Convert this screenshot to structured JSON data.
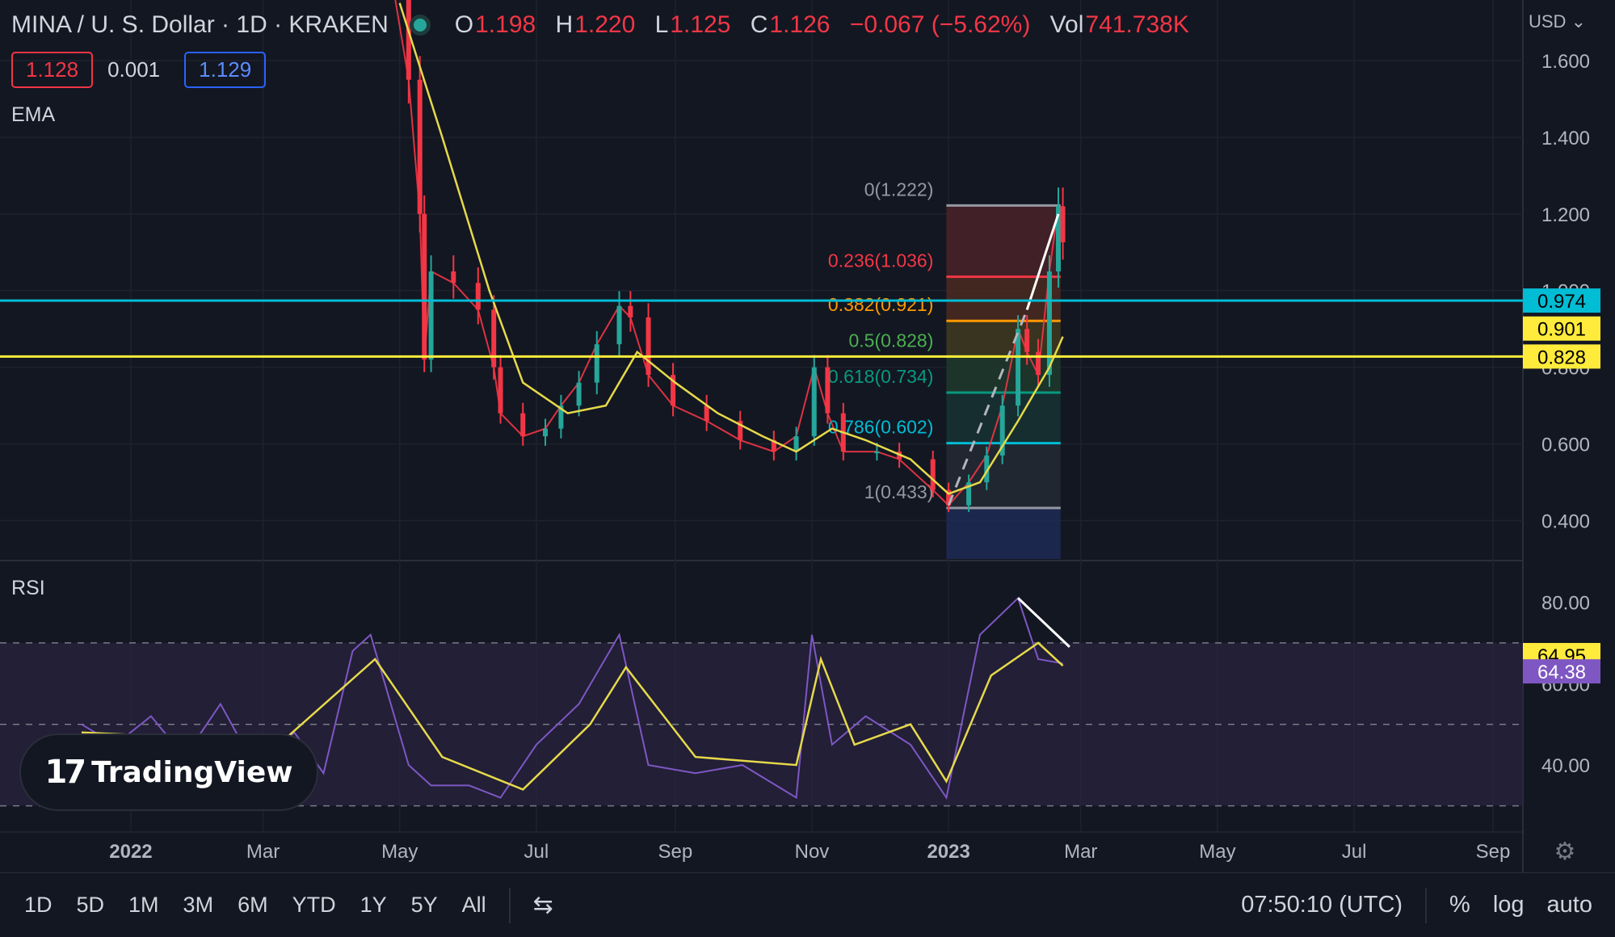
{
  "header": {
    "symbol": "MINA / U. S. Dollar · 1D · KRAKEN",
    "o_label": "O",
    "o": "1.198",
    "h_label": "H",
    "h": "1.220",
    "l_label": "L",
    "l": "1.125",
    "c_label": "C",
    "c": "1.126",
    "change": "−0.067 (−5.62%)",
    "vol_label": "Vol",
    "vol": "741.738K",
    "sell": "1.128",
    "spread": "0.001",
    "buy": "1.129",
    "currency": "USD"
  },
  "indicators": {
    "ema": "EMA",
    "rsi": "RSI"
  },
  "logo": {
    "text": "TradingView"
  },
  "toolbar": {
    "ranges": [
      "1D",
      "5D",
      "1M",
      "3M",
      "6M",
      "YTD",
      "1Y",
      "5Y",
      "All"
    ],
    "time": "07:50:10 (UTC)",
    "percent": "%",
    "log": "log",
    "auto": "auto"
  },
  "colors": {
    "bg": "#131722",
    "up": "#26a69a",
    "down": "#f23645",
    "ema": "#e6d94a",
    "rsi": "#7e57c2",
    "cyan": "#00bcd4",
    "yellow": "#ffeb3b"
  },
  "chart_data": {
    "type": "candlestick",
    "price_axis": {
      "ticks": [
        "1.600",
        "1.400",
        "1.200",
        "1.000",
        "0.800",
        "0.600",
        "0.400"
      ],
      "range": [
        0.3,
        1.72
      ]
    },
    "time_axis": {
      "labels": [
        "2022",
        "Mar",
        "May",
        "Jul",
        "Sep",
        "Nov",
        "2023",
        "Mar",
        "May",
        "Jul",
        "Sep"
      ],
      "bold": [
        "2022",
        "2023"
      ]
    },
    "price_series": [
      {
        "t": "2022-04-25",
        "v": 1.9
      },
      {
        "t": "2022-05-05",
        "v": 1.55
      },
      {
        "t": "2022-05-10",
        "v": 1.2
      },
      {
        "t": "2022-05-12",
        "v": 0.82
      },
      {
        "t": "2022-05-15",
        "v": 1.05
      },
      {
        "t": "2022-05-25",
        "v": 1.02
      },
      {
        "t": "2022-06-05",
        "v": 0.95
      },
      {
        "t": "2022-06-12",
        "v": 0.8
      },
      {
        "t": "2022-06-15",
        "v": 0.68
      },
      {
        "t": "2022-06-25",
        "v": 0.62
      },
      {
        "t": "2022-07-05",
        "v": 0.64
      },
      {
        "t": "2022-07-12",
        "v": 0.7
      },
      {
        "t": "2022-07-20",
        "v": 0.76
      },
      {
        "t": "2022-07-28",
        "v": 0.86
      },
      {
        "t": "2022-08-07",
        "v": 0.96
      },
      {
        "t": "2022-08-12",
        "v": 0.93
      },
      {
        "t": "2022-08-20",
        "v": 0.78
      },
      {
        "t": "2022-08-31",
        "v": 0.7
      },
      {
        "t": "2022-09-15",
        "v": 0.66
      },
      {
        "t": "2022-09-30",
        "v": 0.61
      },
      {
        "t": "2022-10-15",
        "v": 0.58
      },
      {
        "t": "2022-10-25",
        "v": 0.62
      },
      {
        "t": "2022-11-02",
        "v": 0.8
      },
      {
        "t": "2022-11-08",
        "v": 0.68
      },
      {
        "t": "2022-11-15",
        "v": 0.58
      },
      {
        "t": "2022-11-30",
        "v": 0.58
      },
      {
        "t": "2022-12-10",
        "v": 0.56
      },
      {
        "t": "2022-12-25",
        "v": 0.48
      },
      {
        "t": "2023-01-01",
        "v": 0.44
      },
      {
        "t": "2023-01-10",
        "v": 0.5
      },
      {
        "t": "2023-01-18",
        "v": 0.57
      },
      {
        "t": "2023-01-25",
        "v": 0.7
      },
      {
        "t": "2023-02-01",
        "v": 0.9
      },
      {
        "t": "2023-02-05",
        "v": 0.84
      },
      {
        "t": "2023-02-10",
        "v": 0.78
      },
      {
        "t": "2023-02-15",
        "v": 1.05
      },
      {
        "t": "2023-02-19",
        "v": 1.22
      },
      {
        "t": "2023-02-21",
        "v": 1.126
      }
    ],
    "ema_series": [
      {
        "t": "2022-05-01",
        "v": 1.75
      },
      {
        "t": "2022-05-20",
        "v": 1.4
      },
      {
        "t": "2022-06-10",
        "v": 1.0
      },
      {
        "t": "2022-06-25",
        "v": 0.76
      },
      {
        "t": "2022-07-15",
        "v": 0.68
      },
      {
        "t": "2022-08-01",
        "v": 0.7
      },
      {
        "t": "2022-08-15",
        "v": 0.84
      },
      {
        "t": "2022-09-01",
        "v": 0.76
      },
      {
        "t": "2022-09-20",
        "v": 0.68
      },
      {
        "t": "2022-10-10",
        "v": 0.62
      },
      {
        "t": "2022-10-25",
        "v": 0.58
      },
      {
        "t": "2022-11-10",
        "v": 0.64
      },
      {
        "t": "2022-11-25",
        "v": 0.61
      },
      {
        "t": "2022-12-15",
        "v": 0.56
      },
      {
        "t": "2023-01-01",
        "v": 0.47
      },
      {
        "t": "2023-01-15",
        "v": 0.5
      },
      {
        "t": "2023-02-01",
        "v": 0.66
      },
      {
        "t": "2023-02-15",
        "v": 0.8
      },
      {
        "t": "2023-02-21",
        "v": 0.88
      }
    ],
    "horizontal_lines": [
      {
        "value": 0.974,
        "label": "0.974",
        "color": "#00bcd4"
      },
      {
        "value": 0.901,
        "label": "0.901",
        "color": "#ffeb3b"
      },
      {
        "value": 0.828,
        "label": "0.828",
        "color": "#ffeb3b"
      }
    ],
    "fibonacci": {
      "start": "2022-12-31",
      "end": "2023-02-20",
      "levels": [
        {
          "label": "0(1.222)",
          "value": 1.222,
          "color": "#9598a1"
        },
        {
          "label": "0.236(1.036)",
          "value": 1.036,
          "color": "#f23645"
        },
        {
          "label": "0.382(0.921)",
          "value": 0.921,
          "color": "#ff9800"
        },
        {
          "label": "0.5(0.828)",
          "value": 0.828,
          "color": "#4caf50"
        },
        {
          "label": "0.618(0.734)",
          "value": 0.734,
          "color": "#089981"
        },
        {
          "label": "0.786(0.602)",
          "value": 0.602,
          "color": "#00bcd4"
        },
        {
          "label": "1(0.433)",
          "value": 0.433,
          "color": "#9598a1"
        }
      ]
    },
    "rsi": {
      "ticks": [
        "80.00",
        "60.00",
        "40.00"
      ],
      "band": [
        30,
        70
      ],
      "value_labels": [
        "64.95",
        "64.38"
      ],
      "rsi_series": [
        {
          "t": "2021-12-10",
          "v": 50
        },
        {
          "t": "2021-12-25",
          "v": 45
        },
        {
          "t": "2022-01-10",
          "v": 52
        },
        {
          "t": "2022-01-25",
          "v": 42
        },
        {
          "t": "2022-02-10",
          "v": 55
        },
        {
          "t": "2022-02-25",
          "v": 40
        },
        {
          "t": "2022-03-15",
          "v": 48
        },
        {
          "t": "2022-03-28",
          "v": 38
        },
        {
          "t": "2022-04-10",
          "v": 68
        },
        {
          "t": "2022-04-18",
          "v": 72
        },
        {
          "t": "2022-05-05",
          "v": 40
        },
        {
          "t": "2022-05-15",
          "v": 35
        },
        {
          "t": "2022-06-01",
          "v": 35
        },
        {
          "t": "2022-06-15",
          "v": 32
        },
        {
          "t": "2022-07-01",
          "v": 45
        },
        {
          "t": "2022-07-20",
          "v": 55
        },
        {
          "t": "2022-08-07",
          "v": 72
        },
        {
          "t": "2022-08-20",
          "v": 40
        },
        {
          "t": "2022-09-10",
          "v": 38
        },
        {
          "t": "2022-10-01",
          "v": 40
        },
        {
          "t": "2022-10-25",
          "v": 32
        },
        {
          "t": "2022-11-01",
          "v": 72
        },
        {
          "t": "2022-11-10",
          "v": 45
        },
        {
          "t": "2022-11-25",
          "v": 52
        },
        {
          "t": "2022-12-15",
          "v": 45
        },
        {
          "t": "2022-12-31",
          "v": 32
        },
        {
          "t": "2023-01-15",
          "v": 72
        },
        {
          "t": "2023-02-01",
          "v": 81
        },
        {
          "t": "2023-02-10",
          "v": 66
        },
        {
          "t": "2023-02-21",
          "v": 64.95
        }
      ],
      "ma_series": [
        {
          "t": "2021-12-10",
          "v": 48
        },
        {
          "t": "2022-01-20",
          "v": 47
        },
        {
          "t": "2022-03-10",
          "v": 46
        },
        {
          "t": "2022-04-20",
          "v": 66
        },
        {
          "t": "2022-05-20",
          "v": 42
        },
        {
          "t": "2022-06-25",
          "v": 34
        },
        {
          "t": "2022-07-25",
          "v": 50
        },
        {
          "t": "2022-08-10",
          "v": 64
        },
        {
          "t": "2022-09-10",
          "v": 42
        },
        {
          "t": "2022-10-25",
          "v": 40
        },
        {
          "t": "2022-11-05",
          "v": 66
        },
        {
          "t": "2022-11-20",
          "v": 45
        },
        {
          "t": "2022-12-15",
          "v": 50
        },
        {
          "t": "2022-12-31",
          "v": 36
        },
        {
          "t": "2023-01-20",
          "v": 62
        },
        {
          "t": "2023-02-10",
          "v": 70
        },
        {
          "t": "2023-02-21",
          "v": 64.38
        }
      ]
    }
  }
}
